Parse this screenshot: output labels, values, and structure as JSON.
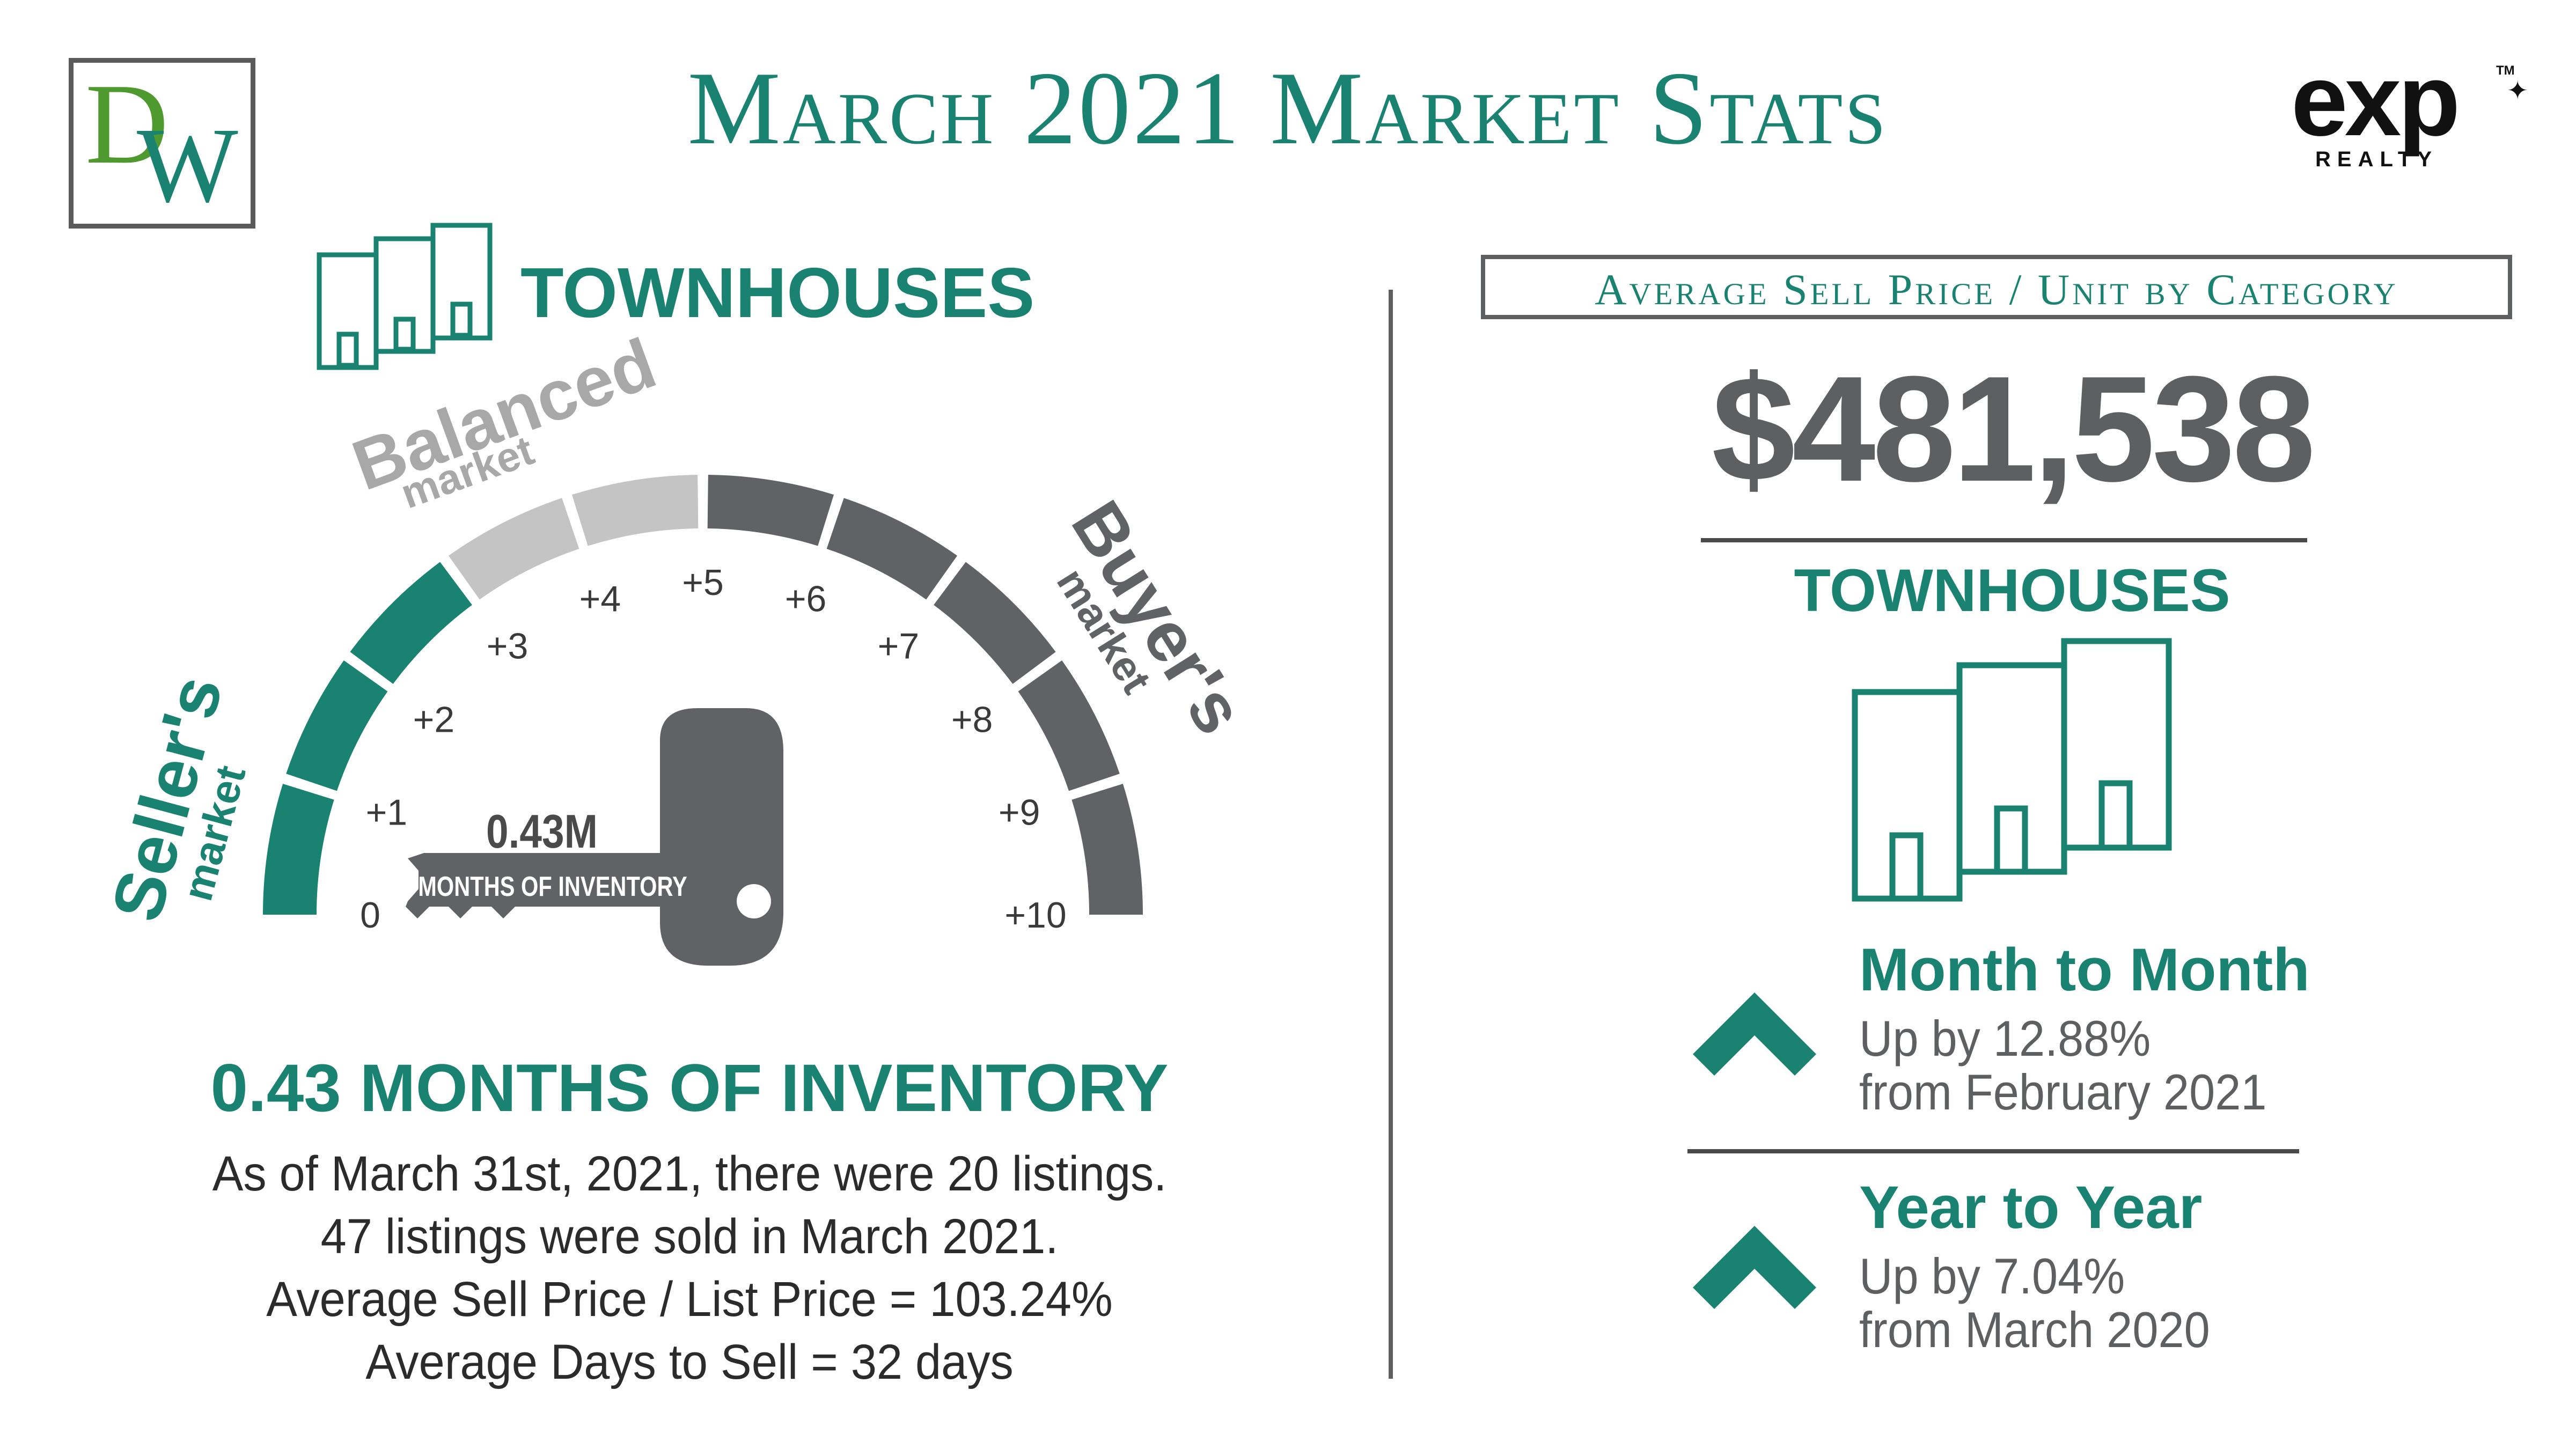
{
  "header": {
    "title": "March 2021 Market Stats",
    "brand_logo": {
      "letters_top": "D",
      "letters_bottom": "W"
    },
    "partner_logo": {
      "wordmark": "exp",
      "subtitle": "REALTY",
      "trademark": "TM",
      "leaf_icon": "maple-leaf-icon"
    }
  },
  "left_panel": {
    "category": "TOWNHOUSES",
    "gauge": {
      "value_months": 0.43,
      "key_value_label": "0.43M",
      "key_caption": "MONTHS OF INVENTORY",
      "scale_min": 0,
      "scale_max": 10,
      "tick_labels": [
        "0",
        "+1",
        "+2",
        "+3",
        "+4",
        "+5",
        "+6",
        "+7",
        "+8",
        "+9",
        "+10"
      ],
      "zones": [
        {
          "label": "Seller's",
          "sub": "market",
          "from": 0,
          "to": 3,
          "color": "#1a8270"
        },
        {
          "label": "Balanced",
          "sub": "market",
          "from": 3,
          "to": 5,
          "color": "#c4c4c4"
        },
        {
          "label": "Buyer's",
          "sub": "market",
          "from": 5,
          "to": 10,
          "color": "#616265"
        }
      ]
    },
    "headline": "0.43 MONTHS OF INVENTORY",
    "details": [
      "As of March 31st, 2021, there were 20 listings.",
      "47 listings were sold in March 2021.",
      "Average Sell Price / List Price = 103.24%",
      "Average Days to Sell = 32 days"
    ]
  },
  "right_panel": {
    "box_title": "Average Sell Price / Unit by Category",
    "price": "$481,538",
    "category": "TOWNHOUSES",
    "month_to_month": {
      "title": "Month to Month",
      "line1": "Up by 12.88%",
      "line2": "from February 2021",
      "icon": "chevron-up-icon"
    },
    "year_to_year": {
      "title": "Year to Year",
      "line1": "Up by 7.04%",
      "line2": "from March 2020",
      "icon": "chevron-up-icon"
    }
  },
  "colors": {
    "teal": "#1a8270",
    "gray_dark": "#5e5f61",
    "gray_light": "#c4c4c4",
    "green": "#4f9a2e"
  }
}
